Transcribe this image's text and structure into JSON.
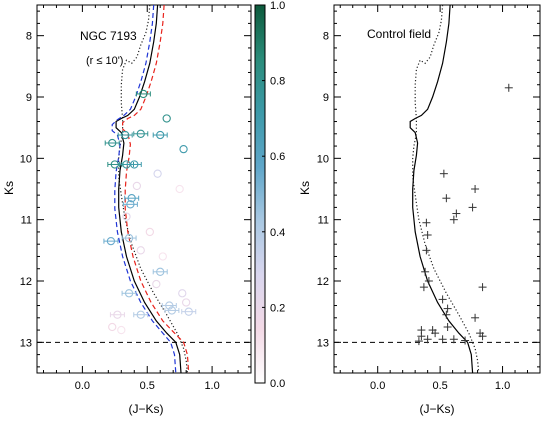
{
  "chart_data": [
    {
      "type": "scatter",
      "panel": "left",
      "title": "NGC 7193",
      "subtitle": "(r ≤ 10')",
      "xlabel": "(J−Ks)",
      "ylabel": "Ks",
      "xlim": [
        -0.35,
        1.3
      ],
      "ylim": [
        13.5,
        7.5
      ],
      "y_inverted": true,
      "xticks": [
        "0.0",
        "0.5",
        "1.0"
      ],
      "xtick_values": [
        0.0,
        0.5,
        1.0
      ],
      "yticks": [
        "8",
        "9",
        "10",
        "11",
        "12",
        "13"
      ],
      "ytick_values": [
        8,
        9,
        10,
        11,
        12,
        13
      ],
      "limit_line": {
        "y": 13.0,
        "style": "dashed"
      },
      "colorbar": {
        "range": [
          0.0,
          1.0
        ],
        "ticks": [
          "0.0",
          "0.2",
          "0.4",
          "0.6",
          "0.8",
          "1.0"
        ],
        "tick_values": [
          0.0,
          0.2,
          0.4,
          0.6,
          0.8,
          1.0
        ],
        "colormap": [
          "#ffffff",
          "#f3d9e6",
          "#d9d6ee",
          "#a9c8e2",
          "#5fa6c9",
          "#3d9aa9",
          "#2a8c7a",
          "#0d5a3c"
        ]
      },
      "isochrones": [
        {
          "color": "#222222",
          "style": "dotted",
          "points": [
            [
              0.52,
              7.5
            ],
            [
              0.51,
              7.75
            ],
            [
              0.49,
              7.95
            ],
            [
              0.45,
              8.15
            ],
            [
              0.42,
              8.35
            ],
            [
              0.38,
              8.45
            ],
            [
              0.34,
              8.4
            ],
            [
              0.31,
              8.55
            ],
            [
              0.3,
              8.8
            ],
            [
              0.3,
              9.1
            ],
            [
              0.31,
              9.35
            ],
            [
              0.31,
              9.6
            ],
            [
              0.29,
              9.8
            ],
            [
              0.28,
              10.0
            ],
            [
              0.28,
              10.3
            ],
            [
              0.3,
              10.6
            ],
            [
              0.33,
              11.0
            ],
            [
              0.38,
              11.4
            ],
            [
              0.45,
              11.8
            ],
            [
              0.55,
              12.2
            ],
            [
              0.65,
              12.55
            ],
            [
              0.73,
              12.85
            ],
            [
              0.78,
              13.1
            ],
            [
              0.8,
              13.3
            ],
            [
              0.81,
              13.5
            ]
          ]
        },
        {
          "color": "#000000",
          "style": "solid",
          "points": [
            [
              0.58,
              7.5
            ],
            [
              0.57,
              7.8
            ],
            [
              0.55,
              8.1
            ],
            [
              0.52,
              8.45
            ],
            [
              0.48,
              8.75
            ],
            [
              0.44,
              9.0
            ],
            [
              0.4,
              9.2
            ],
            [
              0.35,
              9.3
            ],
            [
              0.3,
              9.35
            ],
            [
              0.26,
              9.4
            ],
            [
              0.26,
              9.5
            ],
            [
              0.3,
              9.58
            ],
            [
              0.32,
              9.75
            ],
            [
              0.31,
              9.95
            ],
            [
              0.29,
              10.2
            ],
            [
              0.28,
              10.5
            ],
            [
              0.28,
              10.8
            ],
            [
              0.3,
              11.2
            ],
            [
              0.34,
              11.6
            ],
            [
              0.4,
              12.0
            ],
            [
              0.48,
              12.35
            ],
            [
              0.57,
              12.65
            ],
            [
              0.65,
              12.85
            ],
            [
              0.72,
              13.0
            ],
            [
              0.75,
              13.2
            ],
            [
              0.76,
              13.5
            ]
          ]
        },
        {
          "color": "#e8231c",
          "style": "dashed",
          "points": [
            [
              0.63,
              7.5
            ],
            [
              0.62,
              7.8
            ],
            [
              0.6,
              8.1
            ],
            [
              0.57,
              8.45
            ],
            [
              0.53,
              8.75
            ],
            [
              0.49,
              9.0
            ],
            [
              0.45,
              9.2
            ],
            [
              0.4,
              9.3
            ],
            [
              0.35,
              9.35
            ],
            [
              0.31,
              9.42
            ],
            [
              0.31,
              9.52
            ],
            [
              0.35,
              9.6
            ],
            [
              0.37,
              9.77
            ],
            [
              0.36,
              9.98
            ],
            [
              0.34,
              10.22
            ],
            [
              0.33,
              10.52
            ],
            [
              0.33,
              10.82
            ],
            [
              0.35,
              11.2
            ],
            [
              0.39,
              11.6
            ],
            [
              0.45,
              12.0
            ],
            [
              0.53,
              12.35
            ],
            [
              0.62,
              12.65
            ],
            [
              0.71,
              12.85
            ],
            [
              0.78,
              13.0
            ],
            [
              0.81,
              13.2
            ],
            [
              0.82,
              13.5
            ]
          ]
        },
        {
          "color": "#1f35d6",
          "style": "dashed",
          "points": [
            [
              0.55,
              7.5
            ],
            [
              0.54,
              7.8
            ],
            [
              0.52,
              8.1
            ],
            [
              0.49,
              8.45
            ],
            [
              0.45,
              8.75
            ],
            [
              0.41,
              9.0
            ],
            [
              0.37,
              9.2
            ],
            [
              0.32,
              9.3
            ],
            [
              0.27,
              9.37
            ],
            [
              0.23,
              9.45
            ],
            [
              0.23,
              9.55
            ],
            [
              0.27,
              9.62
            ],
            [
              0.29,
              9.78
            ],
            [
              0.28,
              9.98
            ],
            [
              0.26,
              10.22
            ],
            [
              0.25,
              10.52
            ],
            [
              0.25,
              10.82
            ],
            [
              0.27,
              11.2
            ],
            [
              0.31,
              11.6
            ],
            [
              0.37,
              12.0
            ],
            [
              0.45,
              12.35
            ],
            [
              0.54,
              12.65
            ],
            [
              0.62,
              12.85
            ],
            [
              0.68,
              13.0
            ],
            [
              0.71,
              13.2
            ],
            [
              0.72,
              13.5
            ]
          ]
        }
      ],
      "stars": [
        {
          "x": 0.47,
          "y": 8.95,
          "mp": 0.85,
          "errbar": true
        },
        {
          "x": 0.65,
          "y": 9.35,
          "mp": 0.8,
          "errbar": false
        },
        {
          "x": 0.23,
          "y": 9.75,
          "mp": 0.8,
          "errbar": true
        },
        {
          "x": 0.45,
          "y": 9.6,
          "mp": 0.78,
          "errbar": true
        },
        {
          "x": 0.6,
          "y": 9.62,
          "mp": 0.7,
          "errbar": true
        },
        {
          "x": 0.33,
          "y": 9.62,
          "mp": 0.75,
          "errbar": true
        },
        {
          "x": 0.78,
          "y": 9.85,
          "mp": 0.7,
          "errbar": false
        },
        {
          "x": 0.25,
          "y": 10.1,
          "mp": 0.82,
          "errbar": true
        },
        {
          "x": 0.34,
          "y": 10.1,
          "mp": 0.75,
          "errbar": true
        },
        {
          "x": 0.4,
          "y": 10.1,
          "mp": 0.7,
          "errbar": true
        },
        {
          "x": 0.58,
          "y": 10.25,
          "mp": 0.3,
          "errbar": false
        },
        {
          "x": 0.42,
          "y": 10.45,
          "mp": 0.2,
          "errbar": false
        },
        {
          "x": 0.75,
          "y": 10.5,
          "mp": 0.1,
          "errbar": false
        },
        {
          "x": 0.38,
          "y": 10.65,
          "mp": 0.6,
          "errbar": true
        },
        {
          "x": 0.37,
          "y": 10.75,
          "mp": 0.55,
          "errbar": true
        },
        {
          "x": 0.34,
          "y": 10.95,
          "mp": 0.25,
          "errbar": false
        },
        {
          "x": 0.52,
          "y": 11.2,
          "mp": 0.15,
          "errbar": false
        },
        {
          "x": 0.22,
          "y": 11.35,
          "mp": 0.55,
          "errbar": true
        },
        {
          "x": 0.36,
          "y": 11.3,
          "mp": 0.45,
          "errbar": true
        },
        {
          "x": 0.45,
          "y": 11.5,
          "mp": 0.2,
          "errbar": false
        },
        {
          "x": 0.62,
          "y": 11.6,
          "mp": 0.1,
          "errbar": false
        },
        {
          "x": 0.6,
          "y": 11.85,
          "mp": 0.45,
          "errbar": true
        },
        {
          "x": 0.57,
          "y": 12.05,
          "mp": 0.2,
          "errbar": false
        },
        {
          "x": 0.36,
          "y": 12.2,
          "mp": 0.45,
          "errbar": true
        },
        {
          "x": 0.77,
          "y": 12.2,
          "mp": 0.25,
          "errbar": false
        },
        {
          "x": 0.8,
          "y": 12.35,
          "mp": 0.2,
          "errbar": false
        },
        {
          "x": 0.67,
          "y": 12.4,
          "mp": 0.4,
          "errbar": true
        },
        {
          "x": 0.69,
          "y": 12.48,
          "mp": 0.4,
          "errbar": true
        },
        {
          "x": 0.82,
          "y": 12.5,
          "mp": 0.35,
          "errbar": true
        },
        {
          "x": 0.27,
          "y": 12.55,
          "mp": 0.2,
          "errbar": true
        },
        {
          "x": 0.45,
          "y": 12.55,
          "mp": 0.4,
          "errbar": true
        },
        {
          "x": 0.23,
          "y": 12.75,
          "mp": 0.15,
          "errbar": false
        },
        {
          "x": 0.3,
          "y": 12.8,
          "mp": 0.1,
          "errbar": false
        }
      ]
    },
    {
      "type": "scatter",
      "panel": "right",
      "title": "Control field",
      "xlabel": "(J−Ks)",
      "ylabel": "Ks",
      "xlim": [
        -0.35,
        1.3
      ],
      "ylim": [
        13.5,
        7.5
      ],
      "y_inverted": true,
      "xticks": [
        "0.0",
        "0.5",
        "1.0"
      ],
      "xtick_values": [
        0.0,
        0.5,
        1.0
      ],
      "yticks": [
        "8",
        "9",
        "10",
        "11",
        "12",
        "13"
      ],
      "ytick_values": [
        8,
        9,
        10,
        11,
        12,
        13
      ],
      "limit_line": {
        "y": 13.0,
        "style": "dashed"
      },
      "isochrones": [
        {
          "color": "#222222",
          "style": "dotted",
          "points": [
            [
              0.52,
              7.5
            ],
            [
              0.51,
              7.75
            ],
            [
              0.49,
              7.95
            ],
            [
              0.45,
              8.15
            ],
            [
              0.42,
              8.35
            ],
            [
              0.38,
              8.45
            ],
            [
              0.34,
              8.4
            ],
            [
              0.31,
              8.55
            ],
            [
              0.3,
              8.8
            ],
            [
              0.3,
              9.1
            ],
            [
              0.31,
              9.35
            ],
            [
              0.31,
              9.6
            ],
            [
              0.29,
              9.8
            ],
            [
              0.28,
              10.0
            ],
            [
              0.28,
              10.3
            ],
            [
              0.3,
              10.6
            ],
            [
              0.33,
              11.0
            ],
            [
              0.38,
              11.4
            ],
            [
              0.45,
              11.8
            ],
            [
              0.55,
              12.2
            ],
            [
              0.65,
              12.55
            ],
            [
              0.73,
              12.85
            ],
            [
              0.78,
              13.1
            ],
            [
              0.8,
              13.3
            ],
            [
              0.81,
              13.5
            ]
          ]
        },
        {
          "color": "#000000",
          "style": "solid",
          "points": [
            [
              0.58,
              7.5
            ],
            [
              0.57,
              7.8
            ],
            [
              0.55,
              8.1
            ],
            [
              0.52,
              8.45
            ],
            [
              0.48,
              8.75
            ],
            [
              0.44,
              9.0
            ],
            [
              0.4,
              9.2
            ],
            [
              0.35,
              9.3
            ],
            [
              0.3,
              9.35
            ],
            [
              0.26,
              9.4
            ],
            [
              0.26,
              9.5
            ],
            [
              0.3,
              9.58
            ],
            [
              0.32,
              9.75
            ],
            [
              0.31,
              9.95
            ],
            [
              0.29,
              10.2
            ],
            [
              0.28,
              10.5
            ],
            [
              0.28,
              10.8
            ],
            [
              0.3,
              11.2
            ],
            [
              0.34,
              11.6
            ],
            [
              0.4,
              12.0
            ],
            [
              0.48,
              12.35
            ],
            [
              0.57,
              12.65
            ],
            [
              0.65,
              12.85
            ],
            [
              0.72,
              13.0
            ],
            [
              0.75,
              13.2
            ],
            [
              0.76,
              13.5
            ]
          ]
        }
      ],
      "stars": [
        {
          "x": 1.05,
          "y": 8.85
        },
        {
          "x": 0.53,
          "y": 10.25
        },
        {
          "x": 0.78,
          "y": 10.5
        },
        {
          "x": 0.55,
          "y": 10.65
        },
        {
          "x": 0.76,
          "y": 10.8
        },
        {
          "x": 0.63,
          "y": 10.9
        },
        {
          "x": 0.61,
          "y": 11.0
        },
        {
          "x": 0.39,
          "y": 11.05
        },
        {
          "x": 0.4,
          "y": 11.25
        },
        {
          "x": 0.39,
          "y": 11.5
        },
        {
          "x": 0.38,
          "y": 11.85
        },
        {
          "x": 0.41,
          "y": 12.0
        },
        {
          "x": 0.37,
          "y": 12.1
        },
        {
          "x": 0.84,
          "y": 12.1
        },
        {
          "x": 0.52,
          "y": 12.3
        },
        {
          "x": 0.56,
          "y": 12.45
        },
        {
          "x": 0.55,
          "y": 12.55
        },
        {
          "x": 0.78,
          "y": 12.6
        },
        {
          "x": 0.56,
          "y": 12.75
        },
        {
          "x": 0.44,
          "y": 12.8
        },
        {
          "x": 0.35,
          "y": 12.8
        },
        {
          "x": 0.35,
          "y": 12.9
        },
        {
          "x": 0.46,
          "y": 12.85
        },
        {
          "x": 0.82,
          "y": 12.85
        },
        {
          "x": 0.84,
          "y": 12.9
        },
        {
          "x": 0.52,
          "y": 12.95
        },
        {
          "x": 0.61,
          "y": 12.95
        },
        {
          "x": 0.7,
          "y": 12.97
        },
        {
          "x": 0.4,
          "y": 12.95
        },
        {
          "x": 0.33,
          "y": 12.98
        }
      ]
    }
  ]
}
